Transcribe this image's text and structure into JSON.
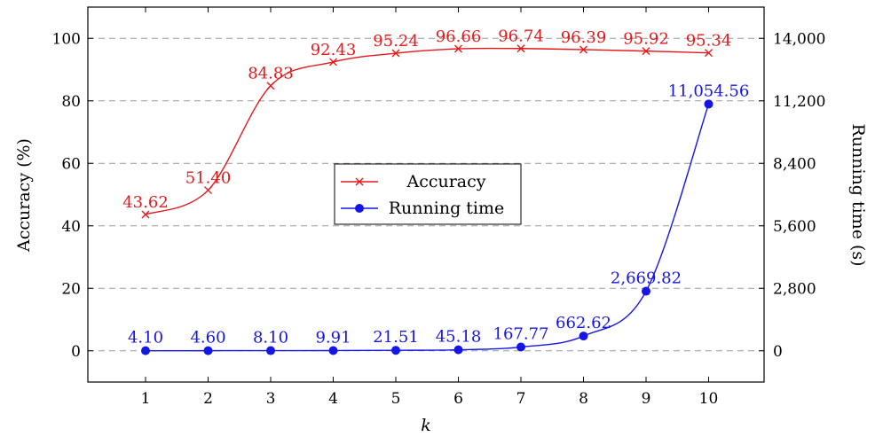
{
  "chart_data": {
    "type": "line",
    "xlabel": "k",
    "ylabel_left": "Accuracy (%)",
    "ylabel_right": "Running time (s)",
    "x": [
      1,
      2,
      3,
      4,
      5,
      6,
      7,
      8,
      9,
      10
    ],
    "x_tick_labels": [
      "1",
      "2",
      "3",
      "4",
      "5",
      "6",
      "7",
      "8",
      "9",
      "10"
    ],
    "left_axis": {
      "ylim": [
        -10,
        110
      ],
      "ticks": [
        0,
        20,
        40,
        60,
        80,
        100
      ],
      "tick_labels": [
        "0",
        "20",
        "40",
        "60",
        "80",
        "100"
      ]
    },
    "right_axis": {
      "ylim": [
        -1400,
        15400
      ],
      "ticks": [
        0,
        2800,
        5600,
        8400,
        11200,
        14000
      ],
      "tick_labels": [
        "0",
        "2,800",
        "5,600",
        "8,400",
        "11,200",
        "14,000"
      ]
    },
    "grid": "horizontal dashed",
    "legend_position": "center",
    "series": [
      {
        "name": "Accuracy",
        "axis": "left",
        "color": "#e3191c",
        "marker": "cross",
        "values": [
          43.62,
          51.4,
          84.83,
          92.43,
          95.24,
          96.66,
          96.74,
          96.39,
          95.92,
          95.34
        ],
        "labels": [
          "43.62",
          "51.40",
          "84.83",
          "92.43",
          "95.24",
          "96.66",
          "96.74",
          "96.39",
          "95.92",
          "95.34"
        ]
      },
      {
        "name": "Running time",
        "axis": "right",
        "color": "#1515e6",
        "marker": "circle",
        "values": [
          4.1,
          4.6,
          8.1,
          9.91,
          21.51,
          45.18,
          167.77,
          662.62,
          2669.82,
          11054.56
        ],
        "labels": [
          "4.10",
          "4.60",
          "8.10",
          "9.91",
          "21.51",
          "45.18",
          "167.77",
          "662.62",
          "2,669.82",
          "11,054.56"
        ]
      }
    ]
  }
}
